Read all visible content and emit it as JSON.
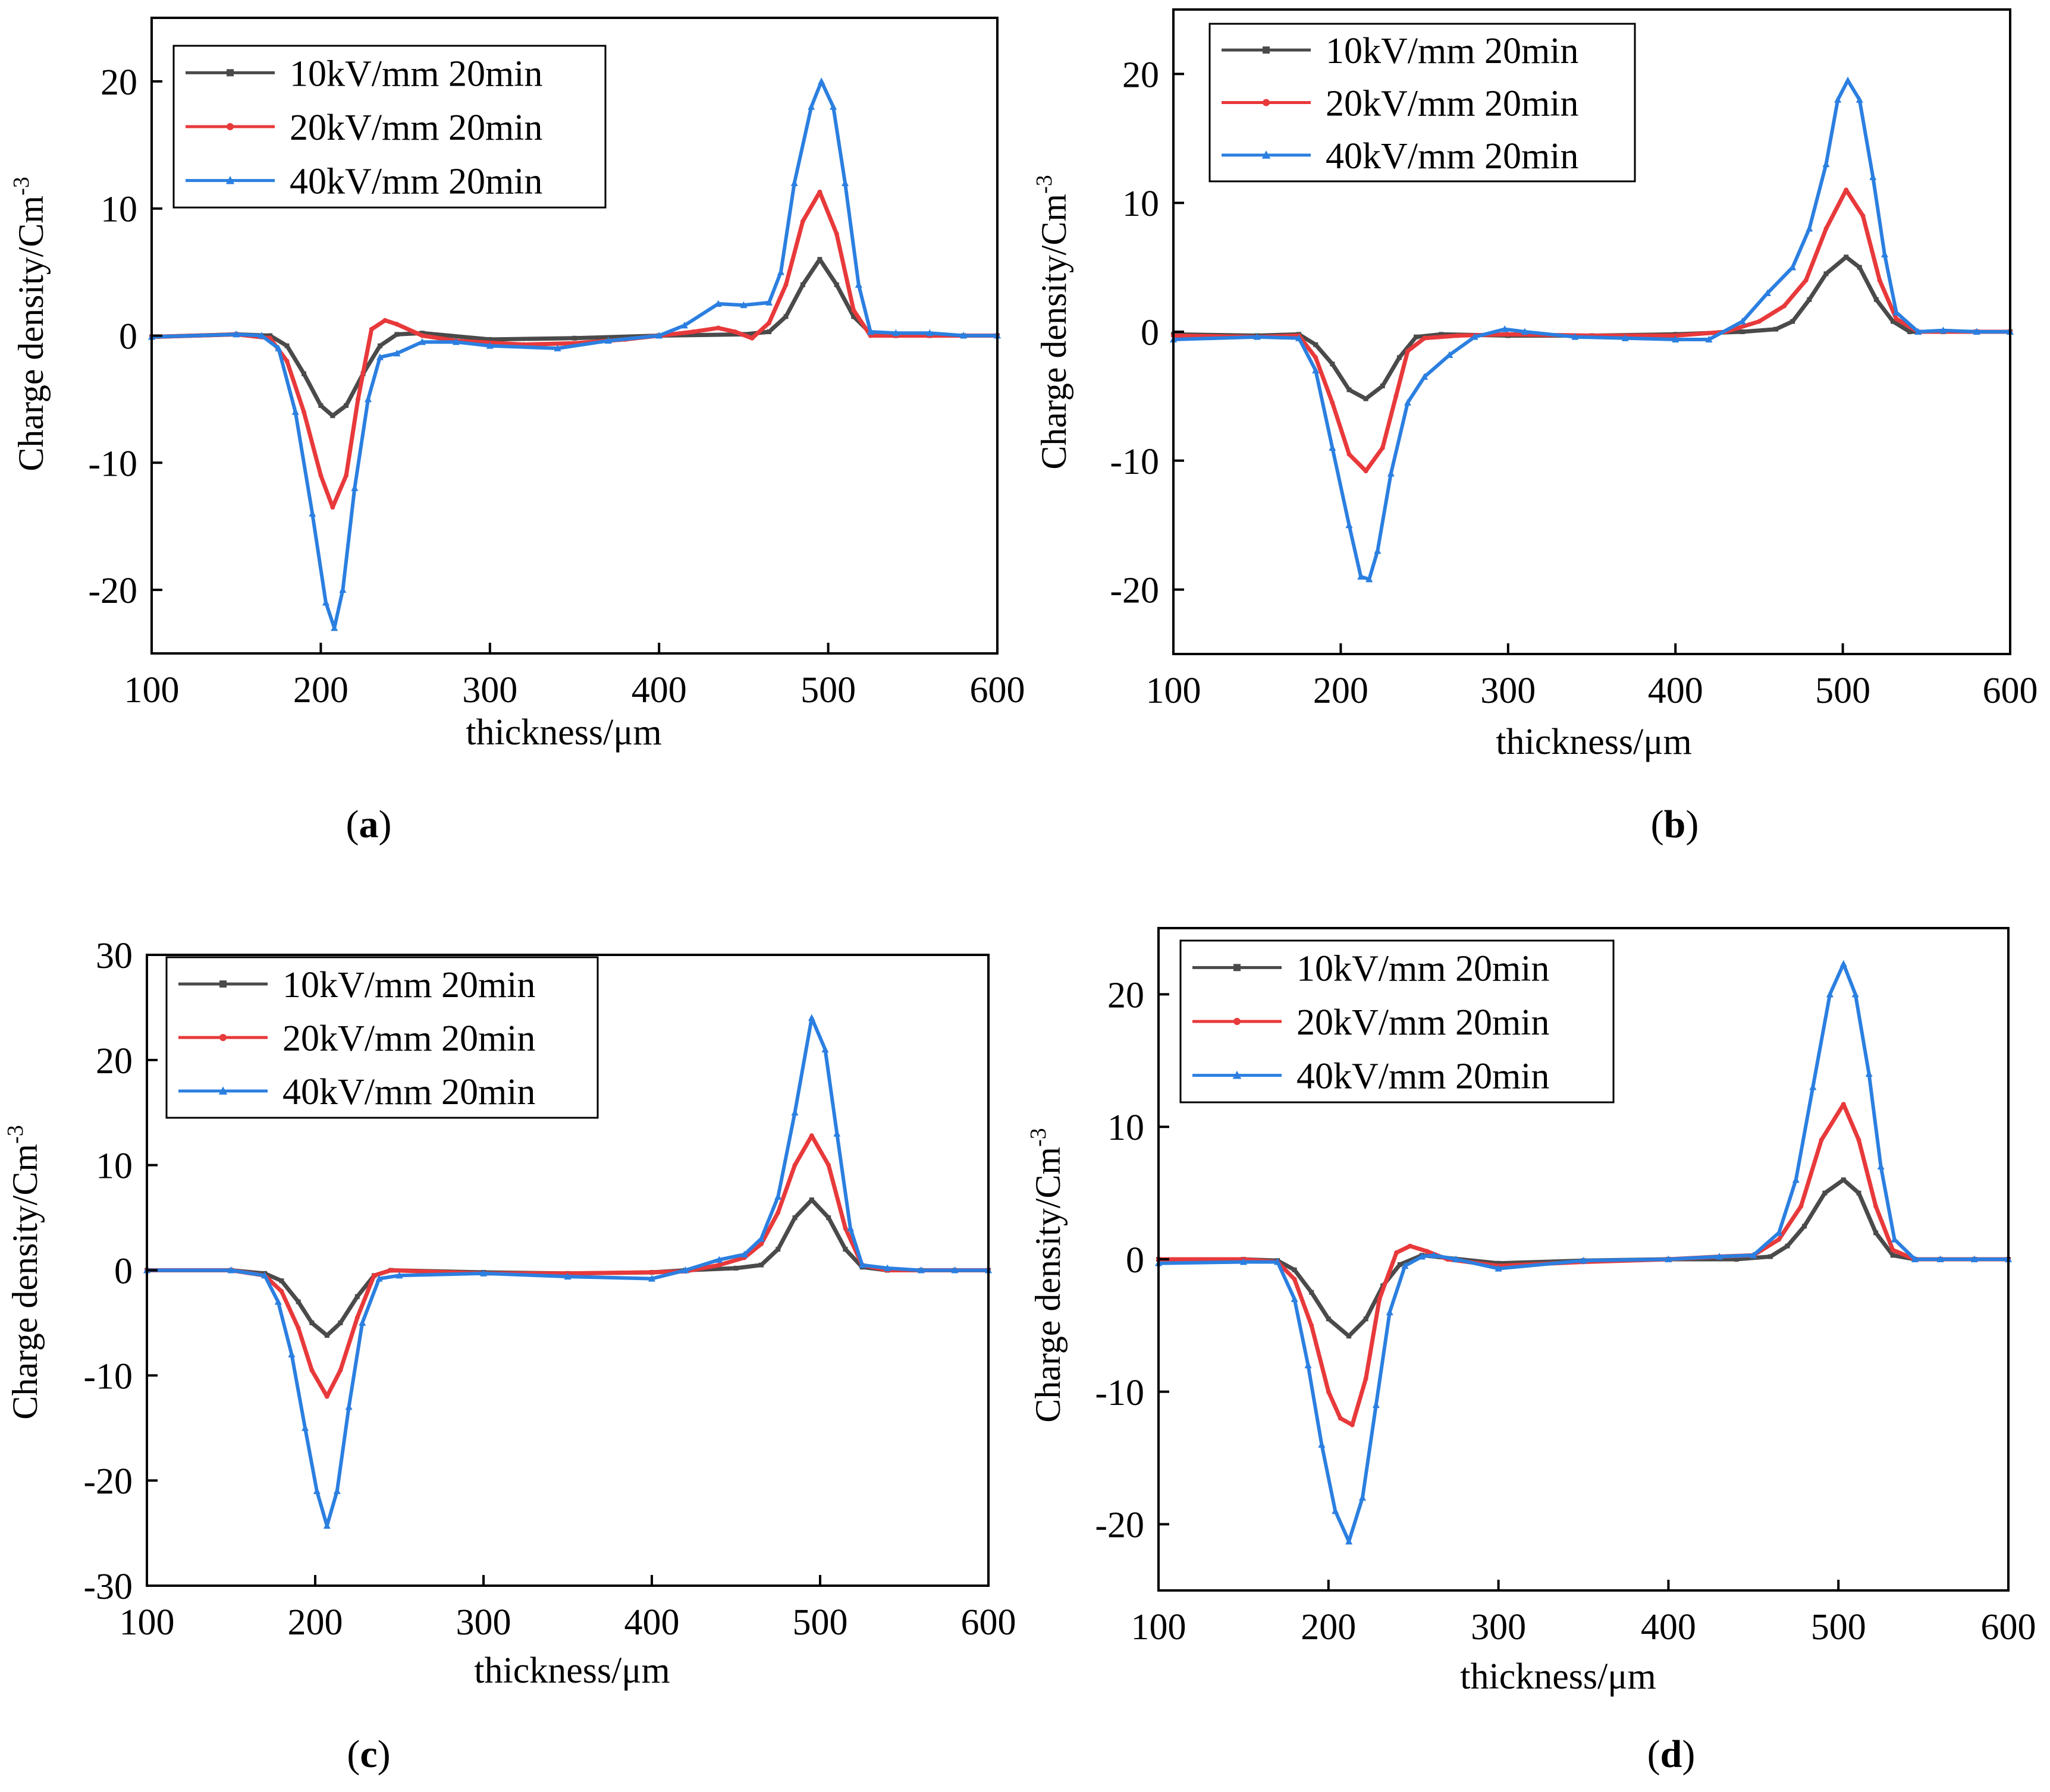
{
  "figure": {
    "panels": [
      {
        "label": "(a)",
        "label_letter": "a",
        "xlabel": "thickness/μm",
        "ylabel": "Charge density/Cm",
        "ylabel_sup": "-3",
        "xlim": [
          100,
          600
        ],
        "ylim": [
          -25,
          25
        ],
        "xticks": [
          100,
          200,
          300,
          400,
          500,
          600
        ],
        "yticks": [
          -20,
          -10,
          0,
          10,
          20
        ]
      },
      {
        "label": "(b)",
        "label_letter": "b",
        "xlabel": "thickness/μm",
        "ylabel": "Charge density/Cm",
        "ylabel_sup": "-3",
        "xlim": [
          100,
          600
        ],
        "ylim": [
          -25,
          25
        ],
        "xticks": [
          100,
          200,
          300,
          400,
          500,
          600
        ],
        "yticks": [
          -20,
          -10,
          0,
          10,
          20
        ]
      },
      {
        "label": "(c)",
        "label_letter": "c",
        "xlabel": "thickness/μm",
        "ylabel": "Charge density/Cm",
        "ylabel_sup": "-3",
        "xlim": [
          100,
          600
        ],
        "ylim": [
          -30,
          30
        ],
        "xticks": [
          100,
          200,
          300,
          400,
          500,
          600
        ],
        "yticks": [
          -30,
          -20,
          -10,
          0,
          10,
          20,
          30
        ]
      },
      {
        "label": "(d)",
        "label_letter": "d",
        "xlabel": "thickness/μm",
        "ylabel": "Charge density/Cm",
        "ylabel_sup": "-3",
        "xlim": [
          100,
          600
        ],
        "ylim": [
          -25,
          25
        ],
        "xticks": [
          100,
          200,
          300,
          400,
          500,
          600
        ],
        "yticks": [
          -20,
          -10,
          0,
          10,
          20
        ]
      }
    ],
    "legend_entries": [
      "10kV/mm 20min",
      "20kV/mm 20min",
      "40kV/mm 20min"
    ],
    "colors": {
      "s10": "#4a4a4a",
      "s20": "#e8393b",
      "s40": "#2b7fe0",
      "axis": "#000000"
    }
  },
  "chart_data": [
    {
      "type": "line",
      "title": "(a)",
      "xlabel": "thickness/μm",
      "ylabel": "Charge density/Cm-3",
      "xlim": [
        100,
        600
      ],
      "ylim": [
        -25,
        25
      ],
      "series": [
        {
          "name": "10kV/mm 20min",
          "x": [
            100,
            150,
            170,
            180,
            190,
            200,
            207,
            215,
            225,
            235,
            245,
            260,
            300,
            350,
            400,
            450,
            465,
            475,
            485,
            495,
            505,
            515,
            525,
            540,
            560,
            580,
            600
          ],
          "y": [
            -0.1,
            0.1,
            0,
            -0.8,
            -3,
            -5.5,
            -6.3,
            -5.5,
            -3,
            -0.8,
            0.1,
            0.2,
            -0.3,
            -0.2,
            0,
            0.1,
            0.3,
            1.5,
            4,
            6,
            4,
            1.5,
            0.2,
            0,
            0,
            0,
            0
          ]
        },
        {
          "name": "20kV/mm 20min",
          "x": [
            100,
            150,
            170,
            180,
            190,
            200,
            207,
            215,
            222,
            230,
            238,
            245,
            260,
            280,
            320,
            350,
            380,
            400,
            420,
            435,
            445,
            455,
            465,
            475,
            485,
            495,
            505,
            515,
            525,
            540,
            560,
            580,
            600
          ],
          "y": [
            -0.1,
            0.1,
            -0.2,
            -2,
            -6,
            -11,
            -13.5,
            -11,
            -5,
            0.5,
            1.2,
            0.9,
            0,
            -0.4,
            -0.7,
            -0.6,
            -0.3,
            0,
            0.3,
            0.6,
            0.3,
            -0.2,
            1,
            4,
            9,
            11.3,
            8,
            2,
            0,
            0,
            0,
            0,
            0
          ]
        },
        {
          "name": "40kV/mm 20min",
          "x": [
            100,
            150,
            165,
            175,
            185,
            195,
            203,
            208,
            213,
            220,
            228,
            235,
            245,
            260,
            280,
            300,
            340,
            370,
            400,
            415,
            435,
            450,
            465,
            472,
            480,
            490,
            496,
            503,
            510,
            518,
            525,
            540,
            560,
            580,
            600
          ],
          "y": [
            -0.1,
            0.1,
            0,
            -1,
            -6,
            -14,
            -21,
            -23,
            -20,
            -12,
            -5,
            -1.7,
            -1.4,
            -0.5,
            -0.5,
            -0.8,
            -1,
            -0.4,
            0,
            0.8,
            2.5,
            2.4,
            2.6,
            5,
            12,
            18,
            20,
            18,
            12,
            4,
            0.3,
            0.2,
            0.2,
            0,
            0
          ]
        }
      ]
    },
    {
      "type": "line",
      "title": "(b)",
      "xlabel": "thickness/μm",
      "ylabel": "Charge density/Cm-3",
      "xlim": [
        100,
        600
      ],
      "ylim": [
        -25,
        25
      ],
      "series": [
        {
          "name": "10kV/mm 20min",
          "x": [
            100,
            150,
            175,
            185,
            195,
            205,
            215,
            225,
            235,
            245,
            260,
            300,
            350,
            400,
            440,
            460,
            470,
            480,
            490,
            502,
            510,
            520,
            530,
            540,
            560,
            580,
            600
          ],
          "y": [
            -0.2,
            -0.3,
            -0.2,
            -1,
            -2.5,
            -4.5,
            -5.2,
            -4.2,
            -2,
            -0.4,
            -0.2,
            -0.3,
            -0.3,
            -0.2,
            0,
            0.2,
            0.8,
            2.5,
            4.5,
            5.8,
            5,
            2.5,
            0.8,
            0,
            0,
            0,
            0
          ]
        },
        {
          "name": "20kV/mm 20min",
          "x": [
            100,
            150,
            175,
            185,
            195,
            205,
            215,
            225,
            233,
            240,
            250,
            270,
            300,
            350,
            400,
            430,
            450,
            465,
            478,
            490,
            502,
            512,
            522,
            532,
            545,
            560,
            580,
            600
          ],
          "y": [
            -0.3,
            -0.4,
            -0.3,
            -2,
            -5.5,
            -9.5,
            -10.8,
            -9,
            -5,
            -1.5,
            -0.5,
            -0.3,
            -0.2,
            -0.3,
            -0.3,
            0,
            0.8,
            2,
            4,
            8,
            11,
            9,
            4,
            1,
            0,
            0,
            0,
            0
          ]
        },
        {
          "name": "40kV/mm 20min",
          "x": [
            100,
            150,
            175,
            185,
            195,
            205,
            212,
            217,
            222,
            230,
            240,
            250,
            265,
            280,
            298,
            310,
            340,
            370,
            400,
            420,
            440,
            455,
            470,
            480,
            490,
            497,
            503,
            510,
            518,
            525,
            532,
            545,
            560,
            580,
            600
          ],
          "y": [
            -0.6,
            -0.4,
            -0.5,
            -3,
            -9,
            -15,
            -19,
            -19.2,
            -17,
            -11,
            -5.5,
            -3.5,
            -1.8,
            -0.4,
            0.2,
            0,
            -0.4,
            -0.5,
            -0.6,
            -0.6,
            0.8,
            3,
            5,
            8,
            13,
            18,
            19.5,
            18,
            12,
            6,
            1.5,
            0,
            0.1,
            0,
            0
          ]
        }
      ]
    },
    {
      "type": "line",
      "title": "(c)",
      "xlabel": "thickness/μm",
      "ylabel": "Charge density/Cm-3",
      "xlim": [
        100,
        600
      ],
      "ylim": [
        -30,
        30
      ],
      "series": [
        {
          "name": "10kV/mm 20min",
          "x": [
            100,
            150,
            170,
            180,
            190,
            198,
            207,
            215,
            225,
            235,
            245,
            300,
            350,
            400,
            420,
            450,
            465,
            475,
            485,
            495,
            505,
            515,
            525,
            540,
            560,
            580,
            600
          ],
          "y": [
            0,
            0,
            -0.3,
            -1,
            -3,
            -5,
            -6.2,
            -5,
            -2.5,
            -0.5,
            0,
            -0.2,
            -0.3,
            -0.2,
            0,
            0.2,
            0.5,
            2,
            5,
            6.7,
            5,
            2,
            0.3,
            0,
            0,
            0,
            0
          ]
        },
        {
          "name": "20kV/mm 20min",
          "x": [
            100,
            150,
            170,
            180,
            190,
            198,
            207,
            215,
            225,
            235,
            245,
            300,
            350,
            400,
            420,
            440,
            455,
            465,
            475,
            485,
            495,
            505,
            515,
            525,
            540,
            560,
            580,
            600
          ],
          "y": [
            0,
            0,
            -0.5,
            -2,
            -5.5,
            -9.5,
            -12,
            -9.5,
            -4.5,
            -0.5,
            0,
            -0.3,
            -0.3,
            -0.2,
            -0.1,
            0.5,
            1.2,
            2.5,
            5.5,
            10,
            12.8,
            10,
            4,
            0.5,
            0,
            0,
            0,
            0
          ]
        },
        {
          "name": "40kV/mm 20min",
          "x": [
            100,
            150,
            170,
            178,
            186,
            194,
            201,
            207,
            213,
            220,
            228,
            238,
            250,
            300,
            350,
            400,
            420,
            440,
            455,
            465,
            475,
            485,
            495,
            503,
            510,
            518,
            525,
            540,
            560,
            580,
            600
          ],
          "y": [
            0,
            0,
            -0.5,
            -3,
            -8,
            -15,
            -21,
            -24.3,
            -21,
            -13,
            -5,
            -0.8,
            -0.5,
            -0.3,
            -0.6,
            -0.8,
            0,
            1,
            1.5,
            3,
            7,
            15,
            24,
            21,
            13,
            4,
            0.5,
            0.2,
            0,
            0,
            0
          ]
        }
      ]
    },
    {
      "type": "line",
      "title": "(d)",
      "xlabel": "thickness/μm",
      "ylabel": "Charge density/Cm-3",
      "xlim": [
        100,
        600
      ],
      "ylim": [
        -25,
        25
      ],
      "series": [
        {
          "name": "10kV/mm 20min",
          "x": [
            100,
            150,
            170,
            180,
            190,
            200,
            212,
            222,
            232,
            242,
            255,
            300,
            350,
            400,
            440,
            460,
            470,
            480,
            492,
            503,
            512,
            522,
            532,
            545,
            560,
            580,
            600
          ],
          "y": [
            0,
            0,
            -0.1,
            -0.8,
            -2.5,
            -4.5,
            -5.8,
            -4.5,
            -2,
            -0.4,
            0.3,
            -0.3,
            -0.1,
            0,
            0,
            0.2,
            1,
            2.5,
            5,
            6,
            5,
            2,
            0.3,
            0,
            0,
            0,
            0
          ]
        },
        {
          "name": "20kV/mm 20min",
          "x": [
            100,
            150,
            170,
            180,
            190,
            200,
            207,
            214,
            222,
            230,
            240,
            248,
            258,
            270,
            300,
            350,
            400,
            430,
            450,
            465,
            478,
            490,
            503,
            512,
            522,
            532,
            545,
            560,
            580,
            600
          ],
          "y": [
            0,
            0,
            -0.2,
            -1.5,
            -5,
            -10,
            -12,
            -12.5,
            -9,
            -3,
            0.5,
            1,
            0.6,
            0,
            -0.5,
            -0.2,
            0,
            0.2,
            0.3,
            1.5,
            4,
            9,
            11.7,
            9,
            4,
            0.7,
            0,
            0,
            0,
            0
          ]
        },
        {
          "name": "40kV/mm 20min",
          "x": [
            100,
            150,
            170,
            180,
            188,
            196,
            204,
            212,
            220,
            228,
            236,
            245,
            255,
            262,
            275,
            300,
            350,
            400,
            430,
            450,
            465,
            475,
            485,
            495,
            503,
            510,
            518,
            525,
            533,
            545,
            560,
            580,
            600
          ],
          "y": [
            -0.3,
            -0.2,
            -0.2,
            -3,
            -8,
            -14,
            -19,
            -21.3,
            -18,
            -11,
            -4,
            -0.5,
            0.2,
            0.3,
            0,
            -0.7,
            -0.1,
            0,
            0.2,
            0.3,
            2,
            6,
            13,
            20,
            22.3,
            20,
            14,
            7,
            1.5,
            0,
            0,
            0,
            0
          ]
        }
      ]
    }
  ]
}
